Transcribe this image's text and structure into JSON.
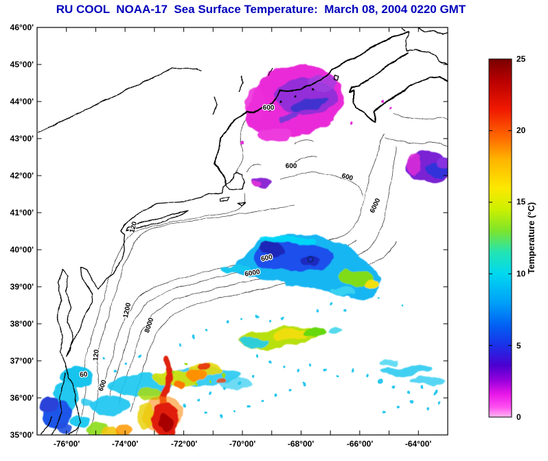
{
  "title": "RU COOL  NOAA-17  Sea Surface Temperature:  March 08, 2004 0220 GMT",
  "title_color": "#0000bb",
  "axes": {
    "y_ticks": [
      "46°00'",
      "45°00'",
      "44°00'",
      "43°00'",
      "42°00'",
      "41°00'",
      "40°00'",
      "39°00'",
      "38°00'",
      "37°00'",
      "36°00'",
      "35°00'"
    ],
    "x_ticks": [
      "-76°00'",
      "-74°00'",
      "-72°00'",
      "-70°00'",
      "-68°00'",
      "-66°00'",
      "-64°00'"
    ]
  },
  "colorbar": {
    "label": "Temperature (°C)",
    "ticks": [
      "25",
      "20",
      "15",
      "10",
      "5",
      "0"
    ],
    "min": 0,
    "max": 25,
    "stops": [
      {
        "t": 0,
        "c": "#ffb8f0"
      },
      {
        "t": 0.7,
        "c": "#ff50f0"
      },
      {
        "t": 1.6,
        "c": "#e816e8"
      },
      {
        "t": 2.6,
        "c": "#9400dc"
      },
      {
        "t": 3.6,
        "c": "#4c00d0"
      },
      {
        "t": 5,
        "c": "#1a30e8"
      },
      {
        "t": 6.5,
        "c": "#0064f4"
      },
      {
        "t": 8,
        "c": "#00a0f8"
      },
      {
        "t": 10,
        "c": "#00d8f0"
      },
      {
        "t": 11.5,
        "c": "#22e4b4"
      },
      {
        "t": 13,
        "c": "#7ce42c"
      },
      {
        "t": 14.5,
        "c": "#ccf000"
      },
      {
        "t": 16,
        "c": "#fce800"
      },
      {
        "t": 18,
        "c": "#ffb400"
      },
      {
        "t": 19.5,
        "c": "#ff6a00"
      },
      {
        "t": 21.5,
        "c": "#f01800"
      },
      {
        "t": 23.5,
        "c": "#b80000"
      },
      {
        "t": 25,
        "c": "#780000"
      }
    ]
  },
  "contours": {
    "labels": [
      "60",
      "120",
      "120",
      "600",
      "600",
      "1200",
      "6000",
      "8000",
      "600",
      "600",
      "600",
      "6000"
    ]
  }
}
